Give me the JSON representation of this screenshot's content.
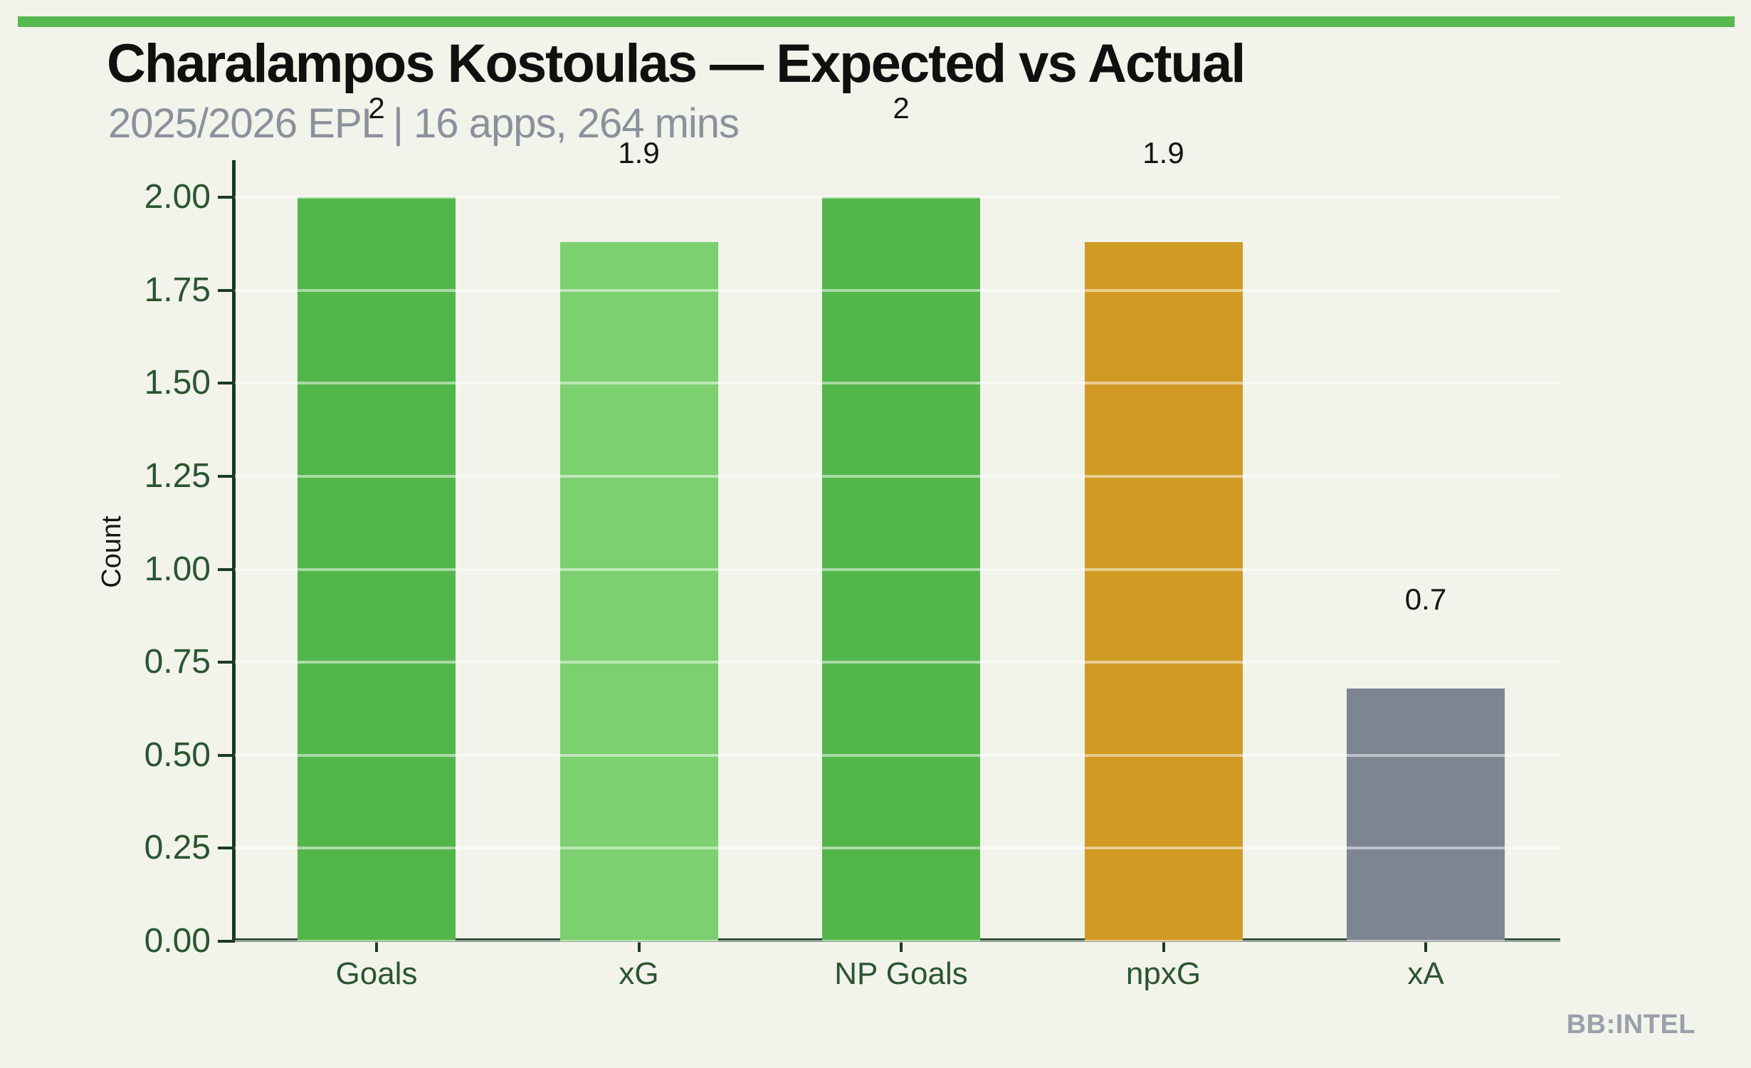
{
  "header": {
    "title": "Charalampos Kostoulas — Expected vs Actual",
    "subtitle": "2025/2026 EPL | 16 apps, 264 mins"
  },
  "footer": {
    "watermark": "BB:INTEL"
  },
  "colors": {
    "background": "#f2f3ea",
    "top_bar": "#56b84e",
    "axis_spine": "#1b3a23",
    "tick_label": "#2a5530",
    "title": "#101010",
    "subtitle": "#8b919c",
    "gridline": "rgba(255,255,255,0.5)",
    "watermark": "#9aa0aa"
  },
  "chart_data": {
    "type": "bar",
    "title": "Charalampos Kostoulas — Expected vs Actual",
    "subtitle": "2025/2026 EPL | 16 apps, 264 mins",
    "categories": [
      "Goals",
      "xG",
      "NP Goals",
      "npxG",
      "xA"
    ],
    "values": [
      2,
      1.88,
      2,
      1.88,
      0.68
    ],
    "bar_labels": [
      "2",
      "1.9",
      "2",
      "1.9",
      "0.7"
    ],
    "bar_colors": [
      "#53b64b",
      "#7cd06f",
      "#53b64b",
      "#d09a23",
      "#7d8591"
    ],
    "xlabel": "",
    "ylabel": "Count",
    "ylim": [
      0,
      2.1
    ],
    "yticks": [
      {
        "value": 0.0,
        "label": "0.00"
      },
      {
        "value": 0.25,
        "label": "0.25"
      },
      {
        "value": 0.5,
        "label": "0.50"
      },
      {
        "value": 0.75,
        "label": "0.75"
      },
      {
        "value": 1.0,
        "label": "1.00"
      },
      {
        "value": 1.25,
        "label": "1.25"
      },
      {
        "value": 1.5,
        "label": "1.50"
      },
      {
        "value": 1.75,
        "label": "1.75"
      },
      {
        "value": 2.0,
        "label": "2.00"
      }
    ],
    "grid": "horizontal white lines drawn over bars",
    "legend": "none"
  }
}
